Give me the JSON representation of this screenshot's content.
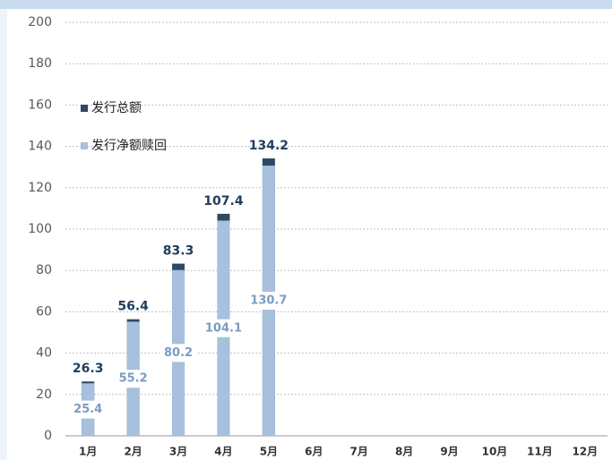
{
  "chart_data": {
    "type": "bar",
    "categories": [
      "1月",
      "2月",
      "3月",
      "4月",
      "5月",
      "6月",
      "7月",
      "8月",
      "9月",
      "10月",
      "11月",
      "12月"
    ],
    "series": [
      {
        "name": "发行总额",
        "color": "#2c4a66",
        "values": [
          26.3,
          56.4,
          83.3,
          107.4,
          134.2,
          null,
          null,
          null,
          null,
          null,
          null,
          null
        ]
      },
      {
        "name": "发行净额赎回",
        "color": "#a7c0dd",
        "values": [
          25.4,
          55.2,
          80.2,
          104.1,
          130.7,
          null,
          null,
          null,
          null,
          null,
          null,
          null
        ]
      }
    ],
    "ylim": [
      0,
      200
    ],
    "yticks": [
      0,
      20,
      40,
      60,
      80,
      100,
      120,
      140,
      160,
      180,
      200
    ],
    "grid": true
  }
}
